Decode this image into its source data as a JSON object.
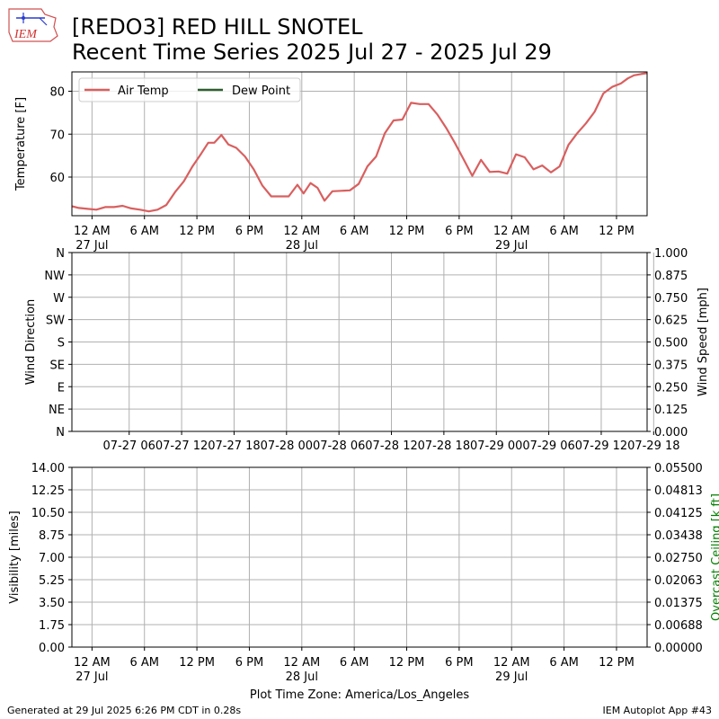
{
  "header": {
    "title_line1": "[REDO3] RED HILL SNOTEL",
    "title_line2": "Recent Time Series 2025 Jul 27 - 2025 Jul 29",
    "logo_text": "IEM"
  },
  "footer": {
    "generated": "Generated at 29 Jul 2025 6:26 PM CDT in 0.28s",
    "app": "IEM Autoplot App #43",
    "timezone": "Plot Time Zone: America/Los_Angeles"
  },
  "colors": {
    "air_temp": "#d95f5f",
    "dew_point": "#2e5e2e",
    "grid": "#b0b0b0",
    "ceiling_label": "#008000"
  },
  "chart_data": [
    {
      "type": "line",
      "id": "temperature",
      "ylabel": "Temperature [F]",
      "xlim_hours": [
        -2.3,
        63.5
      ],
      "ylim": [
        51,
        84.5
      ],
      "yticks": [
        60,
        70,
        80
      ],
      "grid": true,
      "legend": "top-left",
      "x_ticks": [
        {
          "h": 0,
          "label": "12 AM",
          "sub": "27 Jul"
        },
        {
          "h": 6,
          "label": "6 AM"
        },
        {
          "h": 12,
          "label": "12 PM"
        },
        {
          "h": 18,
          "label": "6 PM"
        },
        {
          "h": 24,
          "label": "12 AM",
          "sub": "28 Jul"
        },
        {
          "h": 30,
          "label": "6 AM"
        },
        {
          "h": 36,
          "label": "12 PM"
        },
        {
          "h": 42,
          "label": "6 PM"
        },
        {
          "h": 48,
          "label": "12 AM",
          "sub": "29 Jul"
        },
        {
          "h": 54,
          "label": "6 AM"
        },
        {
          "h": 60,
          "label": "12 PM"
        }
      ],
      "series": [
        {
          "name": "Air Temp",
          "x": [
            -2.3,
            -1.5,
            -0.5,
            0.5,
            1.5,
            2.5,
            3.5,
            4.5,
            5.5,
            6.5,
            7.5,
            8.5,
            9.5,
            10.5,
            11.5,
            12.5,
            13.3,
            14.0,
            14.8,
            15.6,
            16.5,
            17.5,
            18.5,
            19.5,
            20.5,
            21.5,
            22.5,
            23.5,
            24.2,
            25.0,
            25.8,
            26.6,
            27.5,
            28.5,
            29.5,
            30.5,
            31.5,
            32.5,
            33.5,
            34.5,
            35.5,
            36.5,
            37.5,
            38.5,
            39.5,
            40.5,
            41.5,
            42.5,
            43.5,
            44.5,
            45.5,
            46.5,
            47.5,
            48.5,
            49.5,
            50.5,
            51.5,
            52.5,
            53.5,
            54.5,
            55.5,
            56.5,
            57.5,
            58.5,
            59.5,
            60.5,
            61.3,
            62.0,
            62.8,
            63.5
          ],
          "y": [
            53.2,
            52.8,
            52.6,
            52.4,
            53.0,
            53.0,
            53.3,
            52.7,
            52.4,
            52.0,
            52.4,
            53.5,
            56.5,
            59.0,
            62.5,
            65.5,
            68.0,
            68.0,
            69.8,
            67.6,
            66.8,
            64.8,
            61.8,
            58.0,
            55.5,
            55.5,
            55.5,
            58.2,
            56.2,
            58.6,
            57.5,
            54.5,
            56.7,
            56.8,
            56.9,
            58.4,
            62.5,
            64.8,
            70.2,
            73.2,
            73.4,
            77.3,
            77.0,
            77.0,
            74.6,
            71.5,
            68.0,
            64.2,
            60.3,
            64.0,
            61.2,
            61.3,
            60.8,
            65.3,
            64.6,
            61.8,
            62.7,
            61.1,
            62.5,
            67.5,
            70.2,
            72.5,
            75.2,
            79.5,
            81.0,
            81.8,
            83.0,
            83.7,
            84.0,
            84.2
          ]
        },
        {
          "name": "Dew Point",
          "x": [],
          "y": []
        }
      ]
    },
    {
      "type": "line",
      "id": "wind",
      "ylabel": "Wind Direction",
      "y2label": "Wind Speed [mph]",
      "yticks_labels": [
        "N",
        "NE",
        "E",
        "SE",
        "S",
        "SW",
        "W",
        "NW",
        "N"
      ],
      "y2ticks": [
        "0.000",
        "0.125",
        "0.250",
        "0.375",
        "0.500",
        "0.625",
        "0.750",
        "0.875",
        "1.000"
      ],
      "x_ticks": [
        "07-27 06",
        "07-27 12",
        "07-27 18",
        "07-28 00",
        "07-28 06",
        "07-28 12",
        "07-28 18",
        "07-29 00",
        "07-29 06",
        "07-29 12",
        "07-29 18"
      ],
      "x_ticks_offset_hours": [
        6,
        12,
        18,
        24,
        30,
        36,
        42,
        48,
        54,
        60,
        66
      ],
      "grid": true,
      "series": []
    },
    {
      "type": "line",
      "id": "visibility",
      "ylabel": "Visibility [miles]",
      "y2label": "Overcast Ceiling [k ft]",
      "yticks": [
        "0.00",
        "1.75",
        "3.50",
        "5.25",
        "7.00",
        "8.75",
        "10.50",
        "12.25",
        "14.00"
      ],
      "y2ticks": [
        "0.00000",
        "0.00688",
        "0.01375",
        "0.02063",
        "0.02750",
        "0.03438",
        "0.04125",
        "0.04813",
        "0.05500"
      ],
      "ylim": [
        0,
        14
      ],
      "y2lim": [
        0,
        0.055
      ],
      "grid": true,
      "series": []
    }
  ]
}
